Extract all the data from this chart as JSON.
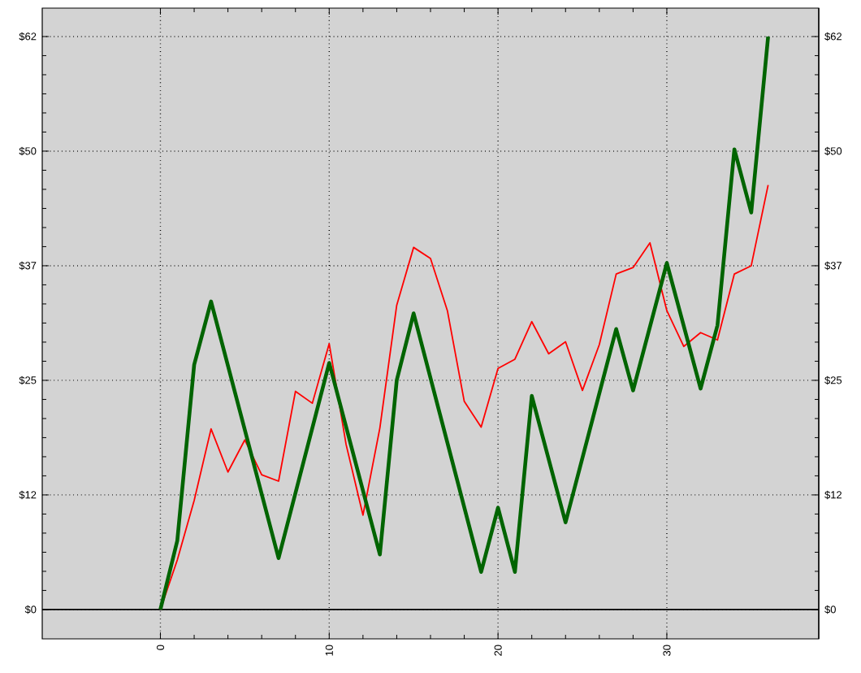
{
  "chart_data": {
    "type": "line",
    "x": [
      0,
      1,
      2,
      3,
      4,
      5,
      6,
      7,
      8,
      9,
      10,
      11,
      12,
      13,
      14,
      15,
      16,
      17,
      18,
      19,
      20,
      21,
      22,
      23,
      24,
      25,
      26,
      27,
      28,
      29,
      30,
      31,
      32,
      33,
      34,
      35,
      36
    ],
    "series": [
      {
        "color": "#ff0000",
        "values": [
          0,
          5.4,
          11.9,
          19.7,
          15.0,
          18.5,
          14.7,
          14.0,
          23.8,
          22.5,
          29.0,
          18.0,
          10.3,
          19.8,
          33.2,
          39.5,
          38.3,
          32.6,
          22.7,
          19.9,
          26.3,
          27.3,
          31.4,
          27.9,
          29.2,
          23.9,
          28.9,
          36.6,
          37.3,
          40.0,
          32.6,
          28.7,
          30.2,
          29.4,
          36.6,
          37.5,
          46.3
        ]
      },
      {
        "color": "#006400",
        "x": [
          0,
          1,
          2,
          3,
          7,
          10,
          13,
          14,
          15,
          19,
          20,
          21,
          22,
          24,
          27,
          28,
          30,
          32,
          33,
          34,
          35,
          36
        ],
        "values": [
          0,
          7.5,
          26.7,
          33.6,
          5.6,
          26.9,
          6.0,
          25.0,
          32.3,
          4.1,
          11.1,
          4.1,
          23.3,
          9.5,
          30.6,
          23.9,
          37.8,
          24.1,
          31.0,
          50.2,
          43.3,
          62.5
        ]
      }
    ],
    "xlim": [
      -7,
      39
    ],
    "xticks": [
      0,
      10,
      20,
      30
    ],
    "ylim": [
      -3.2,
      65.6
    ],
    "yticks": [
      {
        "value": 0,
        "label": "$0"
      },
      {
        "value": 12.5,
        "label": "$12"
      },
      {
        "value": 25,
        "label": "$25"
      },
      {
        "value": 37.5,
        "label": "$37"
      },
      {
        "value": 50,
        "label": "$50"
      },
      {
        "value": 62.5,
        "label": "$62"
      }
    ],
    "y2lim": [
      -3.2,
      65.6
    ],
    "y2ticks": [
      {
        "value": 0,
        "label": "$0"
      },
      {
        "value": 12.5,
        "label": "$12"
      },
      {
        "value": 25,
        "label": "$25"
      },
      {
        "value": 37.5,
        "label": "$37"
      },
      {
        "value": 50,
        "label": "$50"
      },
      {
        "value": 62.5,
        "label": "$62"
      }
    ],
    "grid": true,
    "ref_lines": [
      {
        "axis": "y",
        "value": 0,
        "color": "#000000"
      }
    ]
  }
}
